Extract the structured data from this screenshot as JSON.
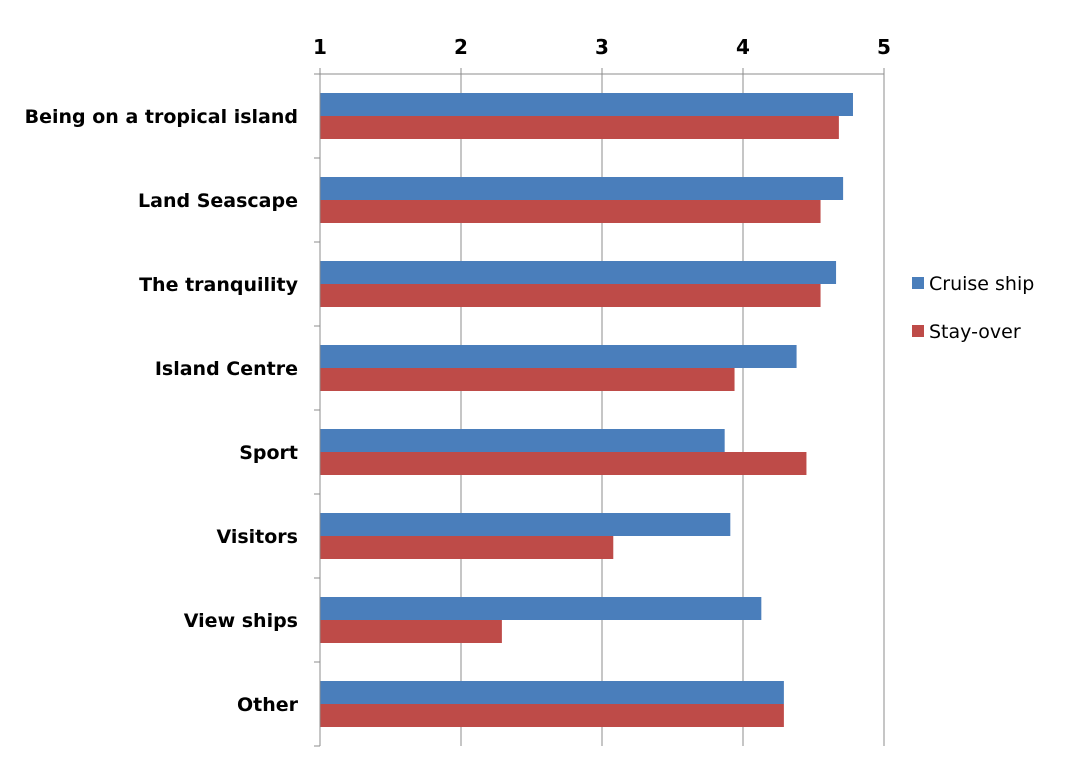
{
  "chart_data": {
    "type": "bar",
    "orientation": "horizontal",
    "categories": [
      "Being on a tropical island",
      "Land Seascape",
      "The tranquility",
      "Island Centre",
      "Sport",
      "Visitors",
      "View ships",
      "Other"
    ],
    "series": [
      {
        "name": "Cruise ship",
        "color": "#4a7ebb",
        "values": [
          4.78,
          4.71,
          4.66,
          4.38,
          3.87,
          3.91,
          4.13,
          4.29
        ]
      },
      {
        "name": "Stay-over",
        "color": "#be4b48",
        "values": [
          4.68,
          4.55,
          4.55,
          3.94,
          4.45,
          3.08,
          2.29,
          4.29
        ]
      }
    ],
    "title": "",
    "xlabel": "",
    "ylabel": "",
    "xlim": [
      1,
      5
    ],
    "x_ticks": [
      "1",
      "2",
      "3",
      "4",
      "5"
    ],
    "x_axis_position": "top",
    "grid": true,
    "legend_position": "right"
  }
}
